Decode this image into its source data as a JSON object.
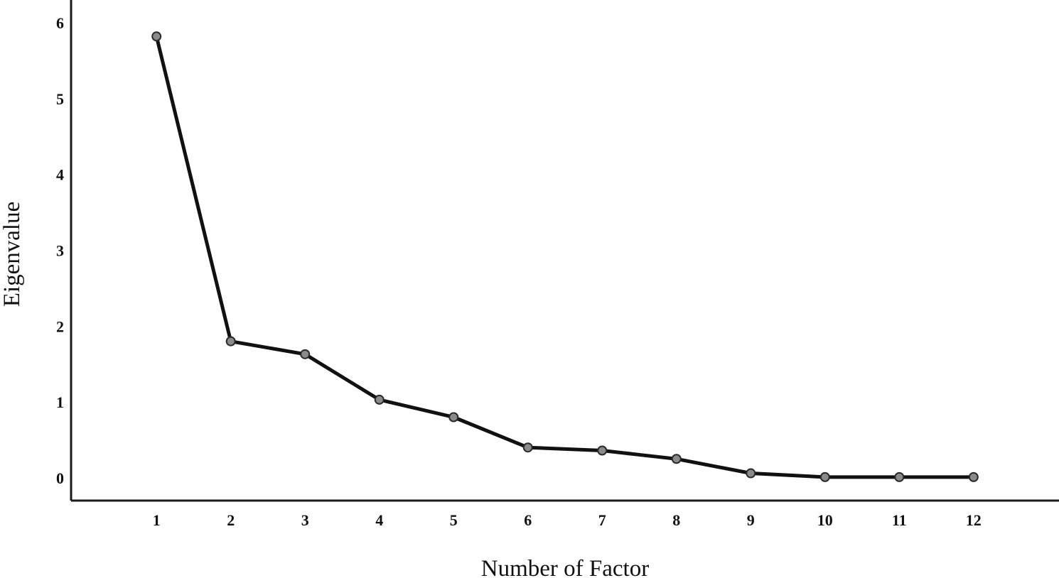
{
  "chart_data": {
    "type": "line",
    "title": "",
    "xlabel": "Number of Factor",
    "ylabel": "Eigenvalue",
    "x": [
      1,
      2,
      3,
      4,
      5,
      6,
      7,
      8,
      9,
      10,
      11,
      12
    ],
    "y": [
      5.82,
      1.8,
      1.63,
      1.03,
      0.8,
      0.4,
      0.36,
      0.25,
      0.06,
      0.01,
      0.01,
      0.01
    ],
    "x_tick_labels": [
      "1",
      "2",
      "3",
      "4",
      "5",
      "6",
      "7",
      "8",
      "9",
      "10",
      "11",
      "12"
    ],
    "y_ticks": [
      0,
      1,
      2,
      3,
      4,
      5,
      6
    ],
    "y_tick_labels": [
      "0",
      "1",
      "2",
      "3",
      "4",
      "5",
      "6"
    ],
    "ylim": [
      -0.3,
      6.3
    ],
    "xlim": [
      -0.15,
      13.15
    ],
    "grid": false,
    "legend": "none",
    "colors": {
      "line": "#111111",
      "marker_fill": "#8a8a8a",
      "axis": "#1a1a1a"
    }
  }
}
